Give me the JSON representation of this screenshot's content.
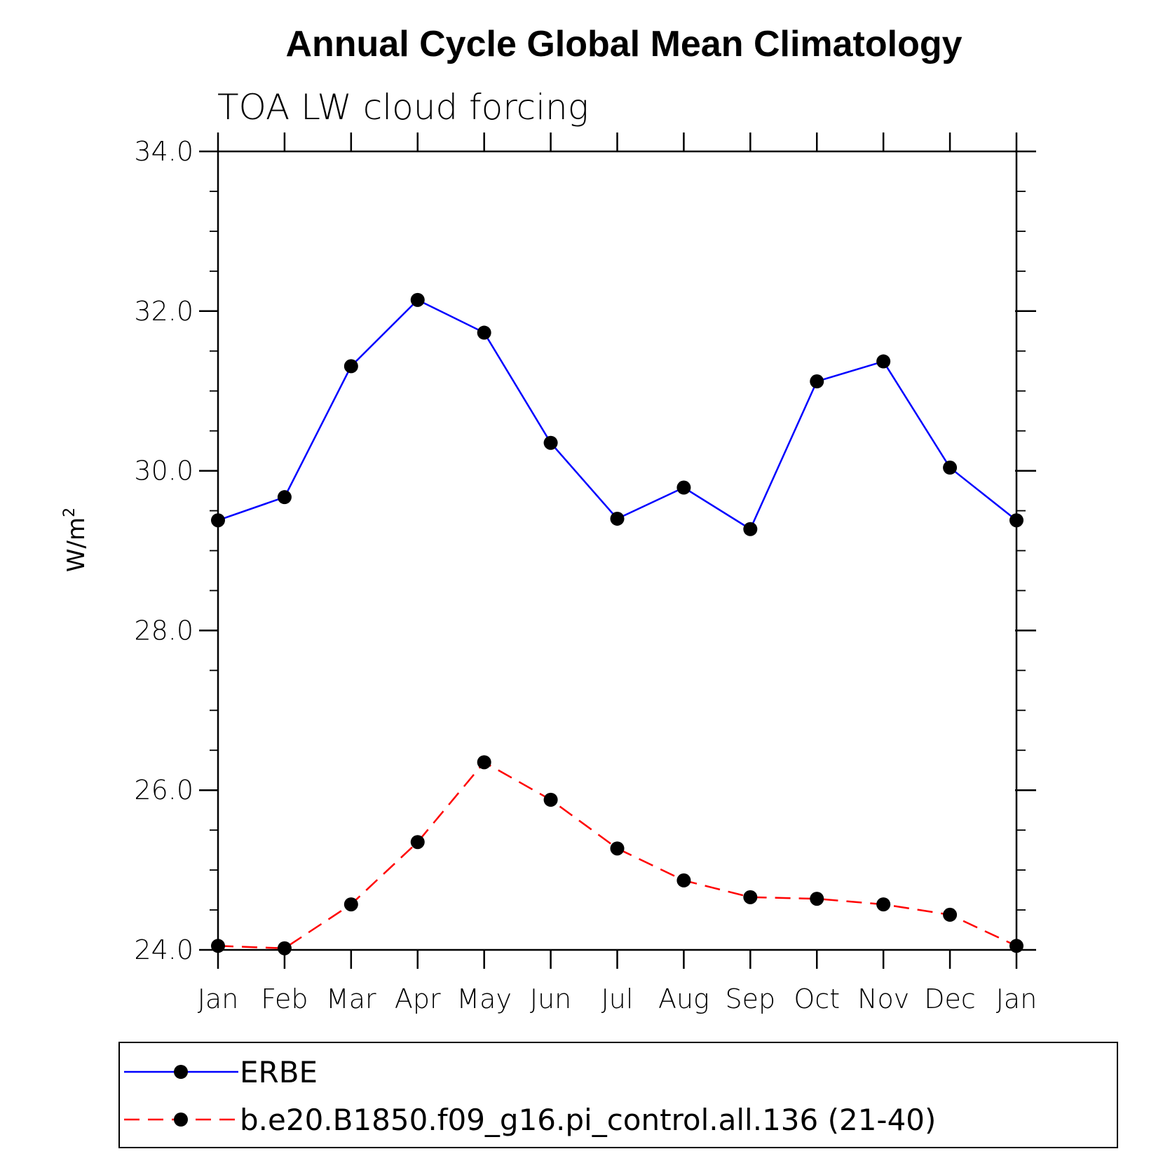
{
  "chart_data": {
    "type": "line",
    "title": "Annual Cycle Global Mean Climatology",
    "subtitle": "TOA LW cloud forcing",
    "ylabel": "W/m",
    "ylabel_sup": "2",
    "xlabel": "",
    "ylim": [
      24.0,
      34.0
    ],
    "y_ticks": [
      "24.0",
      "26.0",
      "28.0",
      "30.0",
      "32.0",
      "34.0"
    ],
    "categories": [
      "Jan",
      "Feb",
      "Mar",
      "Apr",
      "May",
      "Jun",
      "Jul",
      "Aug",
      "Sep",
      "Oct",
      "Nov",
      "Dec",
      "Jan"
    ],
    "series": [
      {
        "name": "ERBE",
        "color": "#0000ff",
        "dash": "solid",
        "values": [
          29.38,
          29.67,
          31.31,
          32.14,
          31.73,
          30.35,
          29.4,
          29.79,
          29.27,
          31.12,
          31.37,
          30.04,
          29.38
        ]
      },
      {
        "name": "b.e20.B1850.f09_g16.pi_control.all.136 (21-40)",
        "color": "#ff0000",
        "dash": "dashed",
        "values": [
          24.05,
          24.02,
          24.57,
          25.35,
          26.35,
          25.88,
          25.27,
          24.87,
          24.66,
          24.64,
          24.57,
          24.44,
          24.05
        ]
      }
    ],
    "legend_position": "bottom",
    "grid": false
  }
}
